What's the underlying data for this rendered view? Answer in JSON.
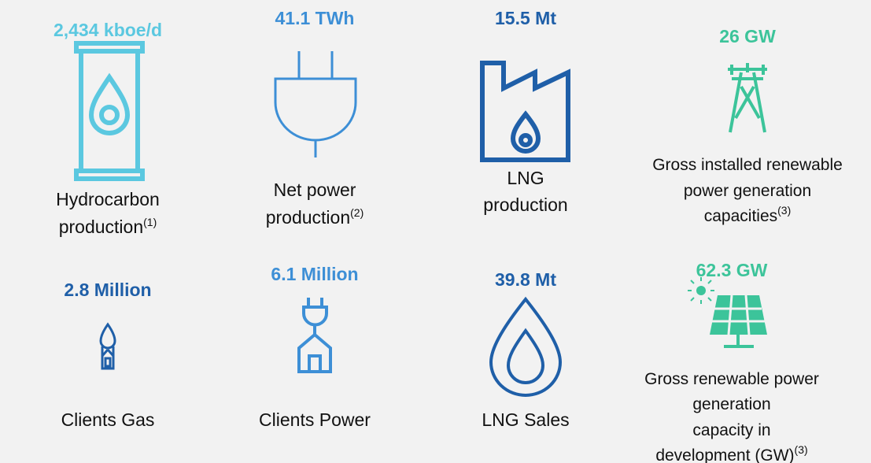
{
  "tiles": [
    {
      "value": "2,434 kboe/d",
      "label": [
        "Hydrocarbon",
        "production"
      ],
      "note": "(1)"
    },
    {
      "value": "41.1 TWh",
      "label": [
        "Net power",
        "production"
      ],
      "note": "(2)"
    },
    {
      "value": "15.5 Mt",
      "label": [
        "LNG",
        "production"
      ]
    },
    {
      "value": "26 GW",
      "label": [
        "Gross installed renewable",
        "power generation",
        "capacities"
      ],
      "note": "(3)"
    },
    {
      "value": "2.8 Million",
      "label": [
        "Clients Gas"
      ]
    },
    {
      "value": "6.1 Million",
      "label": [
        "Clients Power"
      ]
    },
    {
      "value": "39.8 Mt",
      "label": [
        "LNG Sales"
      ]
    },
    {
      "value": "62.3 GW",
      "label": [
        "Gross renewable power",
        "generation",
        "capacity in",
        "development (GW)"
      ],
      "note": "(3)"
    }
  ]
}
